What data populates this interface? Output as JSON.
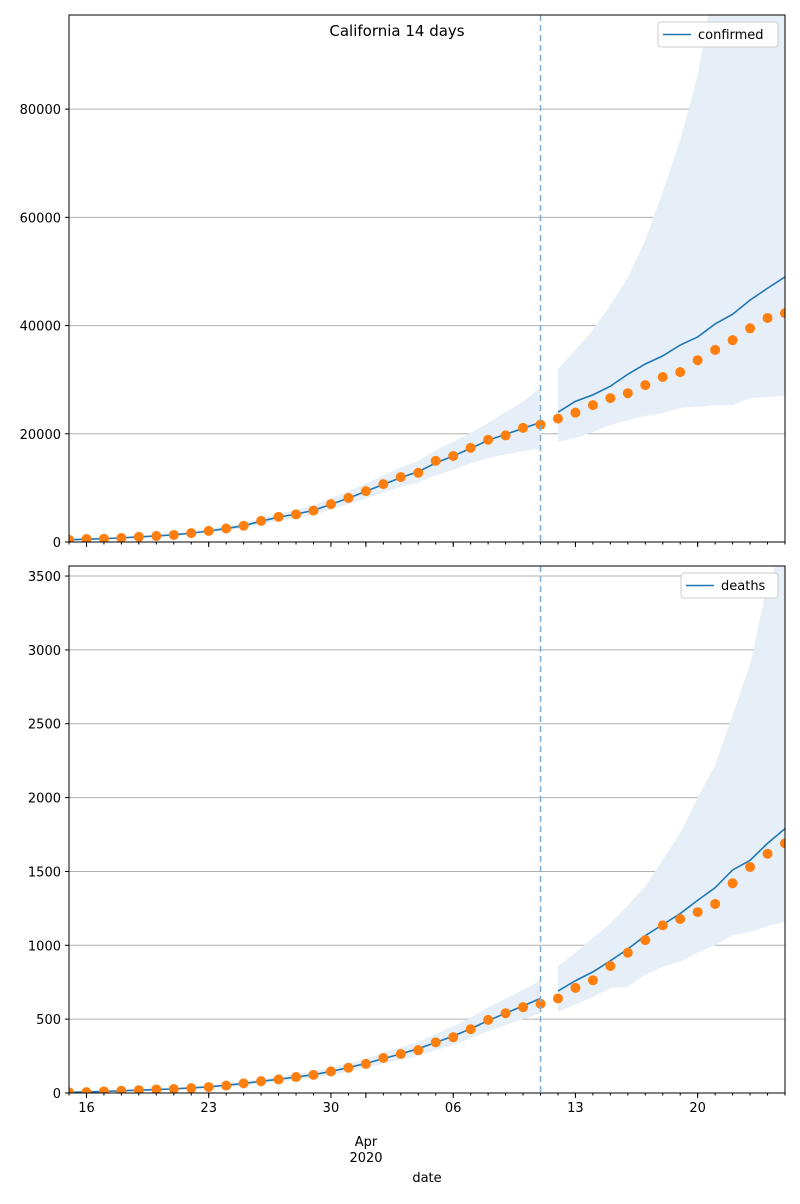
{
  "chart_data": [
    {
      "type": "line",
      "title": "California 14 days",
      "xlabel": "date",
      "ylabel": "",
      "xlim_dates": [
        "2020-03-15",
        "2020-04-25"
      ],
      "ylim": [
        0,
        97400
      ],
      "grid": "y",
      "legend": {
        "position": "top-right",
        "entries": [
          "confirmed"
        ]
      },
      "yticks": [
        0,
        20000,
        40000,
        60000,
        80000
      ],
      "cutoff_date": "2020-04-11",
      "observed_start": "2020-03-15",
      "observed_points": [
        400,
        550,
        600,
        750,
        950,
        1100,
        1300,
        1650,
        2050,
        2500,
        3000,
        3900,
        4650,
        5100,
        5800,
        7000,
        8150,
        9400,
        10700,
        12000,
        12800,
        15000,
        15900,
        17400,
        18900,
        19700,
        21100,
        21700
      ],
      "observed_fit": [
        400,
        520,
        620,
        760,
        940,
        1120,
        1330,
        1640,
        2030,
        2480,
        3020,
        3850,
        4600,
        5150,
        5850,
        6950,
        8100,
        9350,
        10650,
        11900,
        13000,
        14600,
        15900,
        17300,
        18800,
        19900,
        21000,
        22100
      ],
      "observed_band_upper": [
        500,
        650,
        750,
        900,
        1150,
        1300,
        1550,
        1900,
        2350,
        2900,
        3500,
        4400,
        5300,
        5900,
        6800,
        8100,
        9400,
        10800,
        12300,
        13800,
        15000,
        17000,
        18500,
        20200,
        22000,
        24000,
        26000,
        28500
      ],
      "observed_band_lower": [
        300,
        450,
        550,
        650,
        800,
        950,
        1100,
        1400,
        1750,
        2150,
        2600,
        3300,
        3900,
        4400,
        5000,
        6000,
        7000,
        8000,
        9200,
        10200,
        11000,
        12300,
        13300,
        14500,
        15500,
        16200,
        16800,
        17200
      ],
      "forecast_start": "2020-04-12",
      "forecast_points": [
        22800,
        23900,
        25300,
        26600,
        27500,
        29000,
        30500,
        31400,
        33600,
        35500,
        37300,
        39500,
        41400,
        42300
      ],
      "forecast_line": [
        24000,
        26000,
        27200,
        28800,
        31000,
        32900,
        34400,
        36400,
        37900,
        40300,
        42100,
        44700,
        46900,
        49000
      ],
      "forecast_band_upper": [
        32000,
        35500,
        39200,
        43800,
        48800,
        55800,
        64700,
        74300,
        86300,
        105000,
        125000,
        145000,
        165000,
        185000
      ],
      "forecast_band_lower": [
        18500,
        19200,
        20300,
        21600,
        22500,
        23300,
        23800,
        24800,
        25000,
        25300,
        25300,
        26600,
        26800,
        27000
      ]
    },
    {
      "type": "line",
      "title": "",
      "xlabel": "date",
      "ylabel": "",
      "xlim_dates": [
        "2020-03-15",
        "2020-04-25"
      ],
      "ylim": [
        0,
        3568
      ],
      "grid": "y",
      "legend": {
        "position": "top-right",
        "entries": [
          "deaths"
        ]
      },
      "yticks": [
        0,
        500,
        1000,
        1500,
        2000,
        2500,
        3000,
        3500
      ],
      "cutoff_date": "2020-04-11",
      "observed_start": "2020-03-15",
      "observed_points": [
        5,
        6,
        11,
        15,
        19,
        24,
        27,
        33,
        40,
        50,
        65,
        80,
        92,
        108,
        123,
        146,
        171,
        197,
        237,
        264,
        290,
        343,
        378,
        432,
        495,
        540,
        581,
        604
      ],
      "observed_fit": [
        5,
        7,
        11,
        15,
        19,
        23,
        28,
        34,
        42,
        52,
        65,
        79,
        93,
        108,
        124,
        146,
        172,
        200,
        233,
        265,
        300,
        342,
        385,
        435,
        490,
        540,
        590,
        640
      ],
      "observed_band_upper": [
        8,
        10,
        15,
        20,
        25,
        30,
        35,
        42,
        50,
        62,
        78,
        95,
        110,
        128,
        146,
        172,
        200,
        230,
        275,
        310,
        345,
        400,
        450,
        510,
        580,
        640,
        700,
        760
      ],
      "observed_band_lower": [
        3,
        4,
        7,
        10,
        14,
        18,
        21,
        26,
        32,
        40,
        52,
        66,
        76,
        90,
        104,
        122,
        145,
        168,
        200,
        225,
        250,
        290,
        325,
        370,
        420,
        460,
        500,
        540
      ],
      "forecast_start": "2020-04-12",
      "forecast_points": [
        640,
        712,
        763,
        860,
        950,
        1035,
        1135,
        1178,
        1225,
        1280,
        1420,
        1530,
        1620,
        1690
      ],
      "forecast_line": [
        690,
        760,
        820,
        895,
        975,
        1065,
        1140,
        1215,
        1305,
        1390,
        1510,
        1575,
        1690,
        1790
      ],
      "forecast_band_upper": [
        860,
        950,
        1050,
        1150,
        1270,
        1400,
        1580,
        1760,
        2000,
        2220,
        2560,
        2900,
        3450,
        3700
      ],
      "forecast_band_lower": [
        550,
        600,
        650,
        710,
        720,
        800,
        855,
        890,
        950,
        1000,
        1070,
        1090,
        1130,
        1160
      ]
    }
  ],
  "xticks": {
    "major_labels": [
      "16",
      "23",
      "30",
      "06",
      "13",
      "20"
    ],
    "major_day_offsets": [
      1,
      8,
      15,
      22,
      29,
      36
    ],
    "month_label": "Apr",
    "year_label": "2020"
  },
  "colors": {
    "line": "#1f77b4",
    "points": "#ff7f0e",
    "band": "#e6eff7",
    "grid": "#b0b0b0",
    "cutoff": "#7fb1d8"
  }
}
